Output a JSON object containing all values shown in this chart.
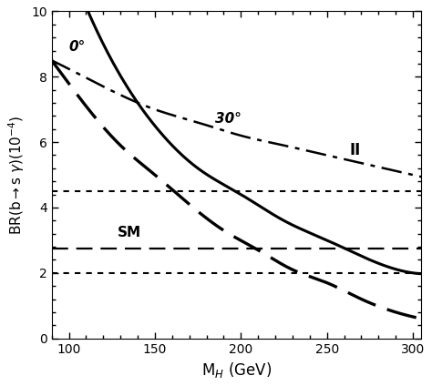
{
  "ylim": [
    0,
    10
  ],
  "xlim": [
    90,
    305
  ],
  "xticks": [
    100,
    150,
    200,
    250,
    300
  ],
  "yticks": [
    0,
    2,
    4,
    6,
    8,
    10
  ],
  "xlabel": "M$_H$ (GeV)",
  "ylabel": "BR(b$\\rightarrow$s $\\gamma$)(10$^{-4}$)",
  "sm_y": 2.75,
  "dotted_upper": 4.5,
  "dotted_lower": 2.0,
  "label_0deg": "0°",
  "label_30deg": "30°",
  "label_II": "II",
  "label_SM": "SM",
  "background_color": "white",
  "solid_x": [
    90,
    120,
    150,
    175,
    200,
    225,
    250,
    275,
    300
  ],
  "solid_y": [
    13.0,
    9.0,
    6.5,
    5.2,
    4.4,
    3.6,
    3.0,
    2.4,
    2.0
  ],
  "dashdot_x": [
    90,
    120,
    150,
    175,
    200,
    225,
    250,
    275,
    300
  ],
  "dashdot_y": [
    8.5,
    7.7,
    7.0,
    6.6,
    6.2,
    5.9,
    5.6,
    5.3,
    5.0
  ],
  "dash_x": [
    90,
    110,
    130,
    150,
    170,
    190,
    210,
    230,
    250,
    270,
    290,
    305
  ],
  "dash_y": [
    8.5,
    7.1,
    5.9,
    5.0,
    4.1,
    3.3,
    2.7,
    2.1,
    1.7,
    1.2,
    0.8,
    0.6
  ]
}
